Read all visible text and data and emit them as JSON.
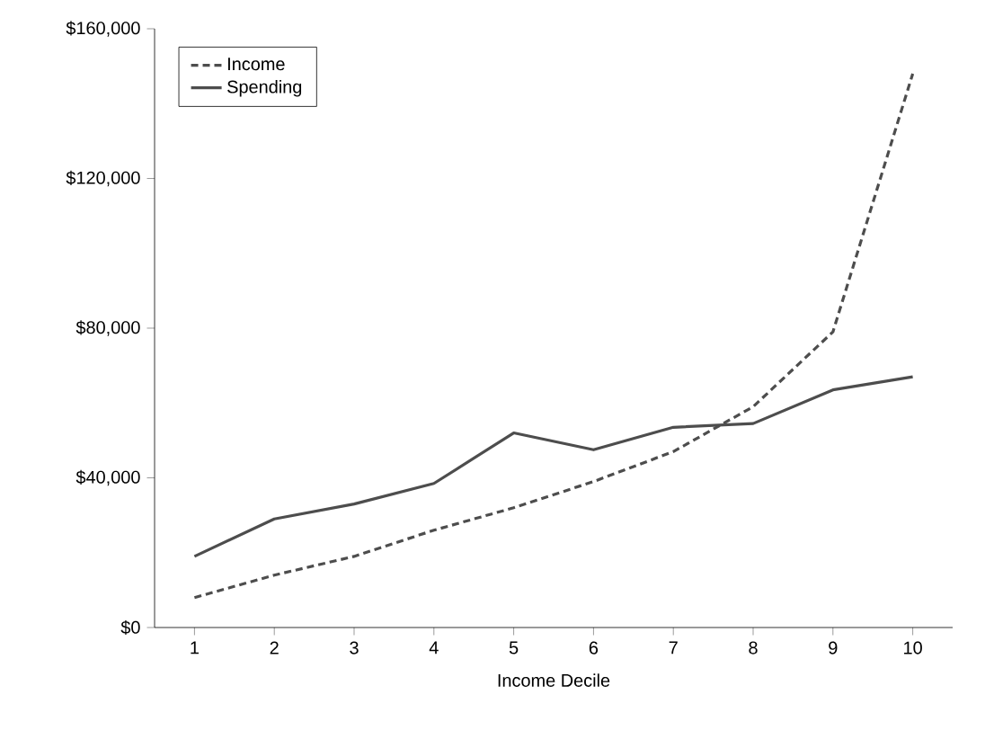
{
  "chart_data": {
    "type": "line",
    "xlabel": "Income Decile",
    "categories": [
      "1",
      "2",
      "3",
      "4",
      "5",
      "6",
      "7",
      "8",
      "9",
      "10"
    ],
    "series": [
      {
        "name": "Income",
        "color": "#4d4d4d",
        "line_style": "dashed",
        "values": [
          8000,
          14000,
          19000,
          26000,
          32000,
          39000,
          47000,
          59000,
          79000,
          148000
        ]
      },
      {
        "name": "Spending",
        "color": "#4d4d4d",
        "line_style": "solid",
        "values": [
          19000,
          29000,
          33000,
          38500,
          52000,
          47500,
          53500,
          54500,
          63500,
          67000
        ]
      }
    ],
    "ylim": [
      0,
      160000
    ],
    "yticks": [
      {
        "value": 0,
        "label": "$0"
      },
      {
        "value": 40000,
        "label": "$40,000"
      },
      {
        "value": 80000,
        "label": "$80,000"
      },
      {
        "value": 120000,
        "label": "$120,000"
      },
      {
        "value": 160000,
        "label": "$160,000"
      }
    ],
    "grid": false,
    "legend": "top left",
    "marker": "none"
  }
}
